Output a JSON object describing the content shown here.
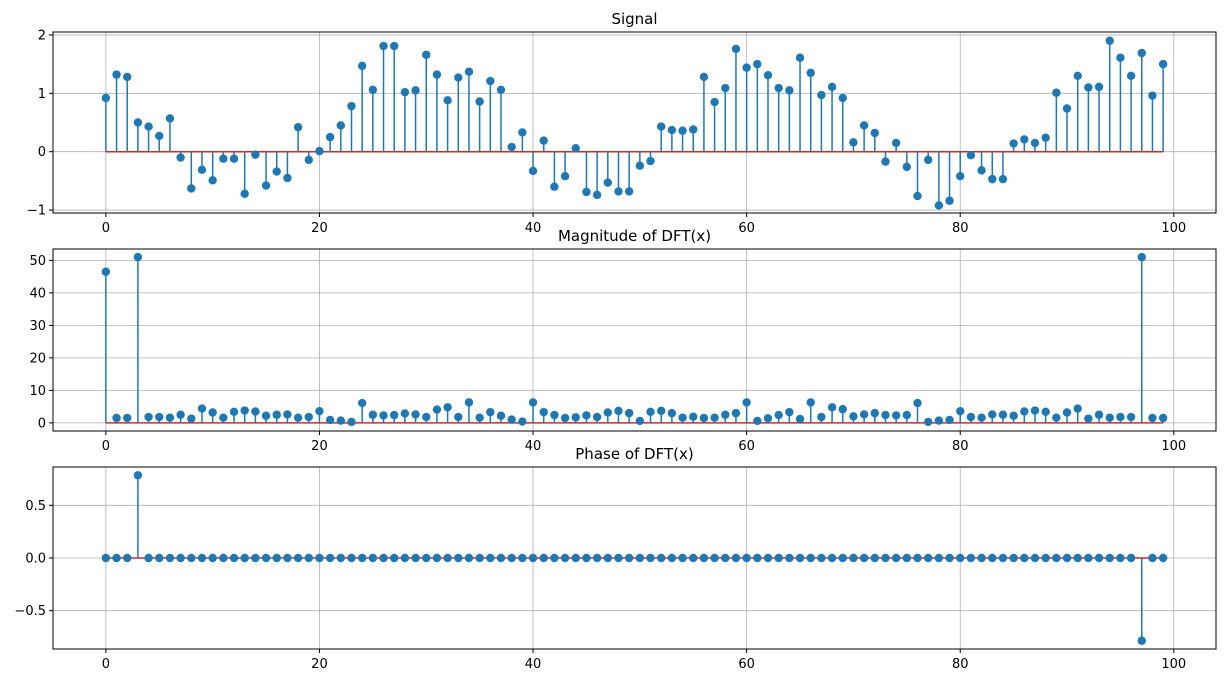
{
  "chart_data": [
    {
      "type": "stem",
      "title": "Signal",
      "xlabel": "",
      "ylabel": "",
      "xlim": [
        -4.95,
        103.95
      ],
      "ylim": [
        -1.05,
        2.05
      ],
      "xticks": [
        0,
        20,
        40,
        60,
        80,
        100
      ],
      "yticks": [
        -1,
        0,
        1,
        2
      ],
      "grid": true,
      "baseline": 0,
      "x_start": 0,
      "values": [
        0.92,
        1.32,
        1.28,
        0.5,
        0.43,
        0.27,
        0.57,
        -0.1,
        -0.63,
        -0.31,
        -0.49,
        -0.12,
        -0.12,
        -0.72,
        -0.05,
        -0.58,
        -0.34,
        -0.45,
        0.42,
        -0.14,
        0.01,
        0.25,
        0.45,
        0.78,
        1.47,
        1.06,
        1.81,
        1.81,
        1.02,
        1.05,
        1.66,
        1.32,
        0.88,
        1.27,
        1.37,
        0.86,
        1.21,
        1.06,
        0.08,
        0.33,
        -0.33,
        0.19,
        -0.6,
        -0.42,
        0.06,
        -0.69,
        -0.74,
        -0.53,
        -0.68,
        -0.68,
        -0.24,
        -0.16,
        0.43,
        0.37,
        0.36,
        0.38,
        1.28,
        0.85,
        1.09,
        1.76,
        1.44,
        1.5,
        1.31,
        1.09,
        1.05,
        1.61,
        1.35,
        0.97,
        1.11,
        0.92,
        0.16,
        0.45,
        0.32,
        -0.17,
        0.15,
        -0.26,
        -0.76,
        -0.14,
        -0.92,
        -0.84,
        -0.42,
        -0.06,
        -0.32,
        -0.47,
        -0.47,
        0.14,
        0.21,
        0.15,
        0.24,
        1.01,
        0.74,
        1.3,
        1.1,
        1.11,
        1.9,
        1.61,
        1.3,
        1.69,
        0.96,
        1.5
      ]
    },
    {
      "type": "stem",
      "title": "Magnitude of DFT(x)",
      "xlabel": "",
      "ylabel": "",
      "xlim": [
        -4.95,
        103.95
      ],
      "ylim": [
        -2.5,
        53.5
      ],
      "xticks": [
        0,
        20,
        40,
        60,
        80,
        100
      ],
      "yticks": [
        0,
        10,
        20,
        30,
        40,
        50
      ],
      "grid": true,
      "baseline": 0,
      "x_start": 0,
      "values": [
        46.5,
        1.5,
        1.5,
        51.0,
        1.8,
        1.8,
        1.6,
        2.5,
        1.3,
        4.4,
        3.2,
        1.6,
        3.4,
        3.8,
        3.5,
        2.2,
        2.5,
        2.6,
        1.6,
        1.8,
        3.6,
        0.9,
        0.7,
        0.3,
        6.1,
        2.5,
        2.3,
        2.4,
        2.9,
        2.6,
        1.8,
        4.1,
        4.8,
        1.8,
        6.3,
        1.6,
        3.3,
        2.2,
        1.0,
        0.4,
        6.3,
        3.3,
        2.4,
        1.5,
        1.7,
        2.3,
        1.8,
        3.2,
        3.7,
        3.0,
        0.6,
        3.4,
        3.7,
        3.0,
        1.6,
        1.9,
        1.5,
        1.6,
        2.5,
        3.0,
        6.3,
        0.6,
        1.4,
        2.4,
        3.3,
        1.2,
        6.3,
        1.8,
        4.8,
        4.2,
        2.0,
        2.6,
        3.0,
        2.4,
        2.3,
        2.4,
        6.1,
        0.3,
        0.7,
        0.9,
        3.6,
        1.8,
        1.6,
        2.6,
        2.5,
        2.2,
        3.5,
        3.8,
        3.4,
        1.6,
        3.2,
        4.4,
        1.3,
        2.5,
        1.6,
        1.8,
        1.8,
        51.0,
        1.5,
        1.5
      ]
    },
    {
      "type": "stem",
      "title": "Phase of DFT(x)",
      "xlabel": "",
      "ylabel": "",
      "xlim": [
        -4.95,
        103.95
      ],
      "ylim": [
        -0.8635,
        0.8635
      ],
      "xticks": [
        0,
        20,
        40,
        60,
        80,
        100
      ],
      "yticks": [
        -0.5,
        0.0,
        0.5
      ],
      "ytick_labels": [
        "−0.5",
        "0.0",
        "0.5"
      ],
      "grid": true,
      "baseline": 0,
      "x_start": 0,
      "values": [
        0,
        0,
        0,
        0.785,
        0,
        0,
        0,
        0,
        0,
        0,
        0,
        0,
        0,
        0,
        0,
        0,
        0,
        0,
        0,
        0,
        0,
        0,
        0,
        0,
        0,
        0,
        0,
        0,
        0,
        0,
        0,
        0,
        0,
        0,
        0,
        0,
        0,
        0,
        0,
        0,
        0,
        0,
        0,
        0,
        0,
        0,
        0,
        0,
        0,
        0,
        0,
        0,
        0,
        0,
        0,
        0,
        0,
        0,
        0,
        0,
        0,
        0,
        0,
        0,
        0,
        0,
        0,
        0,
        0,
        0,
        0,
        0,
        0,
        0,
        0,
        0,
        0,
        0,
        0,
        0,
        0,
        0,
        0,
        0,
        0,
        0,
        0,
        0,
        0,
        0,
        0,
        0,
        0,
        0,
        0,
        0,
        0,
        -0.785,
        0,
        0
      ]
    }
  ]
}
